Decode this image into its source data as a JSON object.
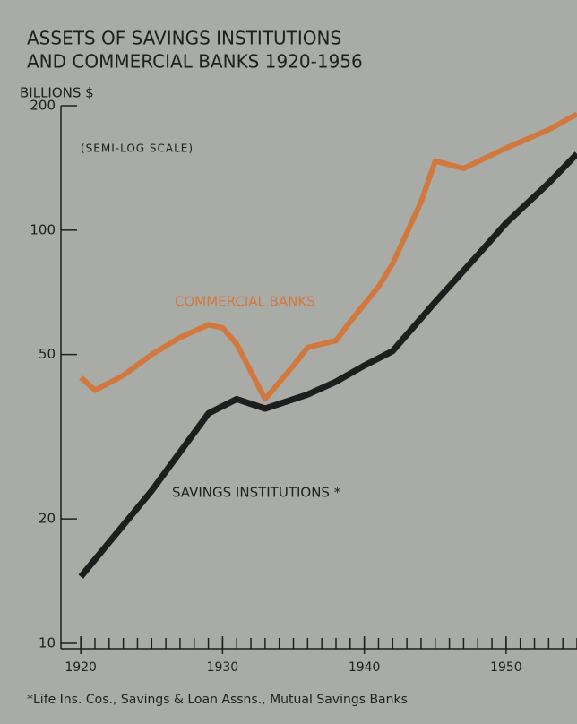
{
  "chart_data": {
    "type": "line",
    "title": [
      "ASSETS OF SAVINGS INSTITUTIONS",
      "AND COMMERCIAL BANKS 1920-1956"
    ],
    "y_label": "BILLIONS $",
    "annotation": "(SEMI-LOG SCALE)",
    "footnote": "*Life Ins. Cos., Savings & Loan Assns., Mutual Savings Banks",
    "log_y": true,
    "xlim": [
      1918.6,
      1955
    ],
    "ylim": [
      10,
      200
    ],
    "xticks": [
      1920,
      1930,
      1940,
      1950
    ],
    "xminorticks": [
      1920,
      1921,
      1922,
      1923,
      1924,
      1925,
      1926,
      1927,
      1928,
      1929,
      1930,
      1931,
      1932,
      1933,
      1934,
      1935,
      1936,
      1937,
      1938,
      1939,
      1940,
      1941,
      1942,
      1943,
      1944,
      1945,
      1946,
      1947,
      1948,
      1949,
      1950,
      1951,
      1952,
      1953,
      1954,
      1955
    ],
    "yticks": [
      10,
      20,
      50,
      100,
      200
    ],
    "series": [
      {
        "name": "COMMERCIAL BANKS",
        "color": "#d2773d",
        "x": [
          1920,
          1921,
          1923,
          1925,
          1927,
          1929,
          1930,
          1931,
          1933,
          1935,
          1936,
          1937,
          1938,
          1939,
          1941,
          1942,
          1944,
          1945,
          1947,
          1950,
          1953,
          1955
        ],
        "values": [
          44,
          41,
          44.5,
          50,
          55,
          59,
          58,
          53,
          39,
          47,
          52,
          53,
          54,
          60,
          73,
          83,
          117,
          147,
          141,
          158,
          175,
          191
        ]
      },
      {
        "name": "SAVINGS INSTITUTIONS *",
        "color": "#1e1e1e",
        "x": [
          1920,
          1925,
          1929,
          1931,
          1933,
          1936,
          1938,
          1940,
          1942,
          1945,
          1948,
          1950,
          1953,
          1955
        ],
        "values": [
          14.5,
          23.4,
          36,
          39,
          37,
          40,
          43,
          47,
          51,
          67,
          87,
          104,
          130,
          153
        ]
      }
    ]
  }
}
